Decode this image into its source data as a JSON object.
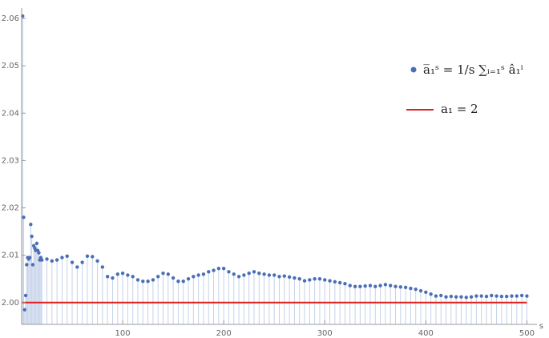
{
  "chart_data": {
    "type": "scatter",
    "x_label": "s",
    "xlim": [
      0,
      510
    ],
    "ylim": [
      1.9954,
      2.0622
    ],
    "xticks": [
      100,
      200,
      300,
      400,
      500
    ],
    "yticks": [
      {
        "value": 2.0,
        "label": "2.00"
      },
      2.01,
      2.02,
      2.03,
      2.04,
      2.05,
      2.06
    ],
    "filling": "axis",
    "series": [
      {
        "name": "a̅₁ˢ = 1/s ∑ᵢ₌₁ˢ â₁ⁱ",
        "color": "#4a6fb5",
        "x": [
          1,
          2,
          3,
          4,
          5,
          6,
          7,
          8,
          9,
          10,
          11,
          12,
          13,
          14,
          15,
          16,
          17,
          18,
          19,
          20,
          25,
          30,
          35,
          40,
          45,
          50,
          55,
          60,
          65,
          70,
          75,
          80,
          85,
          90,
          95,
          100,
          105,
          110,
          115,
          120,
          125,
          130,
          135,
          140,
          145,
          150,
          155,
          160,
          165,
          170,
          175,
          180,
          185,
          190,
          195,
          200,
          205,
          210,
          215,
          220,
          225,
          230,
          235,
          240,
          245,
          250,
          255,
          260,
          265,
          270,
          275,
          280,
          285,
          290,
          295,
          300,
          305,
          310,
          315,
          320,
          325,
          330,
          335,
          340,
          345,
          350,
          355,
          360,
          365,
          370,
          375,
          380,
          385,
          390,
          395,
          400,
          405,
          410,
          415,
          420,
          425,
          430,
          435,
          440,
          445,
          450,
          455,
          460,
          465,
          470,
          475,
          480,
          485,
          490,
          495,
          500
        ],
        "values": [
          2.0605,
          2.018,
          1.9985,
          2.0015,
          2.008,
          2.0095,
          2.0092,
          2.0095,
          2.0165,
          2.014,
          2.008,
          2.012,
          2.0115,
          2.011,
          2.0125,
          2.011,
          2.0105,
          2.009,
          2.0095,
          2.009,
          2.0092,
          2.0088,
          2.009,
          2.0095,
          2.0098,
          2.0085,
          2.0075,
          2.0085,
          2.0098,
          2.0097,
          2.0088,
          2.0075,
          2.0055,
          2.0052,
          2.006,
          2.0062,
          2.0058,
          2.0055,
          2.0048,
          2.0045,
          2.0045,
          2.0048,
          2.0055,
          2.0062,
          2.006,
          2.0052,
          2.0045,
          2.0045,
          2.005,
          2.0055,
          2.0058,
          2.006,
          2.0065,
          2.0068,
          2.0072,
          2.0072,
          2.0065,
          2.006,
          2.0055,
          2.0058,
          2.0062,
          2.0065,
          2.0062,
          2.006,
          2.0058,
          2.0058,
          2.0055,
          2.0056,
          2.0054,
          2.0052,
          2.005,
          2.0046,
          2.0048,
          2.005,
          2.005,
          2.0048,
          2.0046,
          2.0044,
          2.0042,
          2.004,
          2.0036,
          2.0034,
          2.0034,
          2.0035,
          2.0036,
          2.0034,
          2.0036,
          2.0038,
          2.0036,
          2.0034,
          2.0033,
          2.0032,
          2.003,
          2.0028,
          2.0025,
          2.0022,
          2.0018,
          2.0014,
          2.0015,
          2.0012,
          2.0013,
          2.0012,
          2.0012,
          2.0011,
          2.0012,
          2.0014,
          2.0014,
          2.0013,
          2.0015,
          2.0014,
          2.0013,
          2.0013,
          2.0014,
          2.0014,
          2.0015,
          2.0014
        ]
      }
    ],
    "reference_line": {
      "name": "a₁ = 2",
      "value": 2,
      "color": "#e0201b"
    }
  }
}
